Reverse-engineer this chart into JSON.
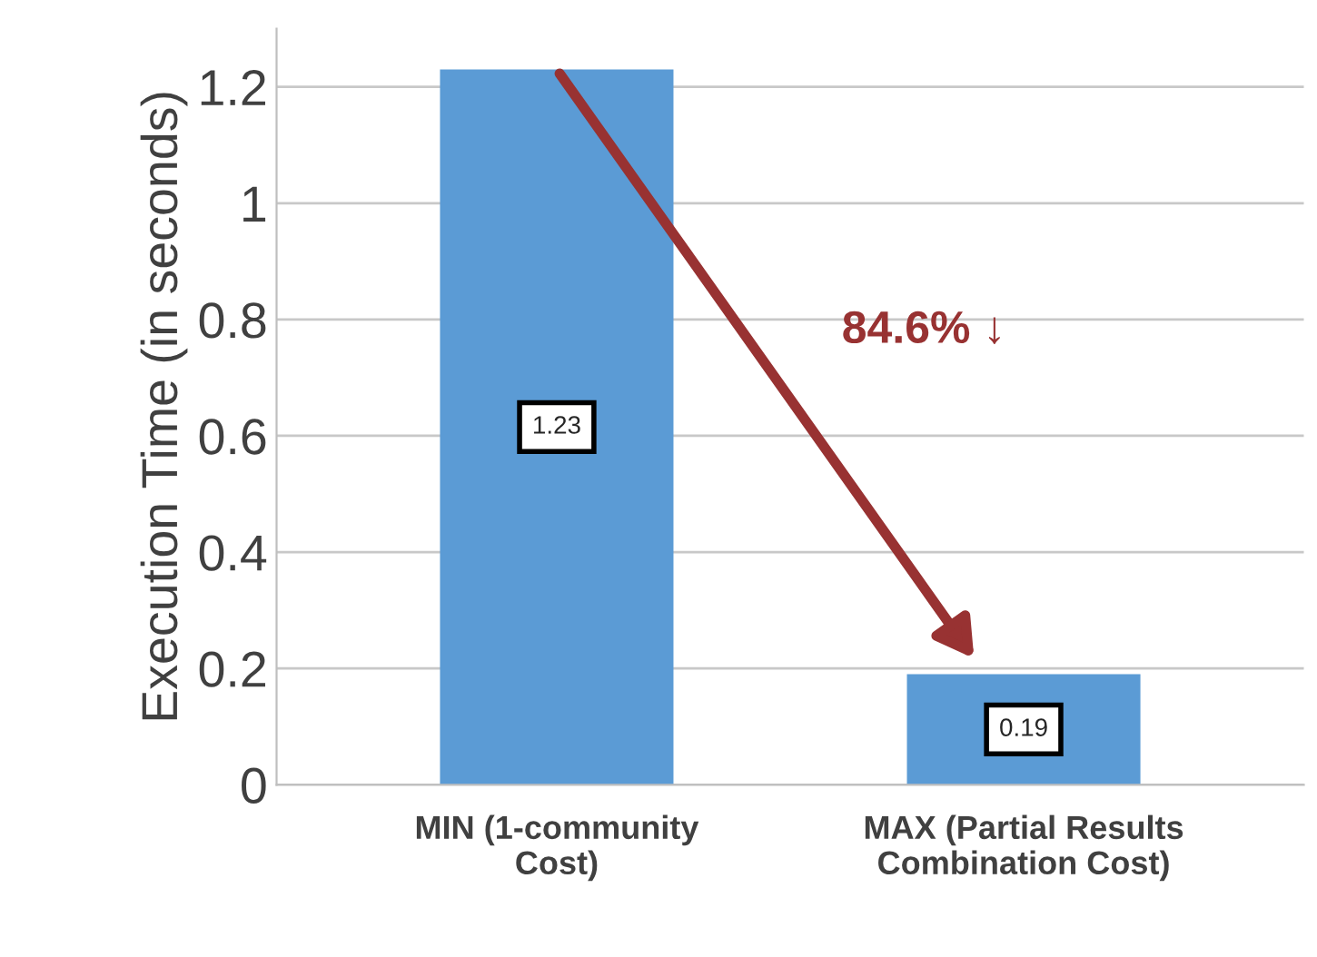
{
  "chart_data": {
    "type": "bar",
    "ylabel": "Execution Time (in seconds)",
    "categories": [
      "MIN (1-community\nCost)",
      "MAX (Partial Results\nCombination Cost)"
    ],
    "values": [
      1.23,
      0.19
    ],
    "color": "#5b9bd5",
    "ylim": [
      0,
      1.3
    ],
    "yticks": [
      0,
      0.2,
      0.4,
      0.6,
      0.8,
      1,
      1.2
    ],
    "grid": "y",
    "data_labels": true,
    "annotations": [
      "84.6% ↓"
    ]
  }
}
